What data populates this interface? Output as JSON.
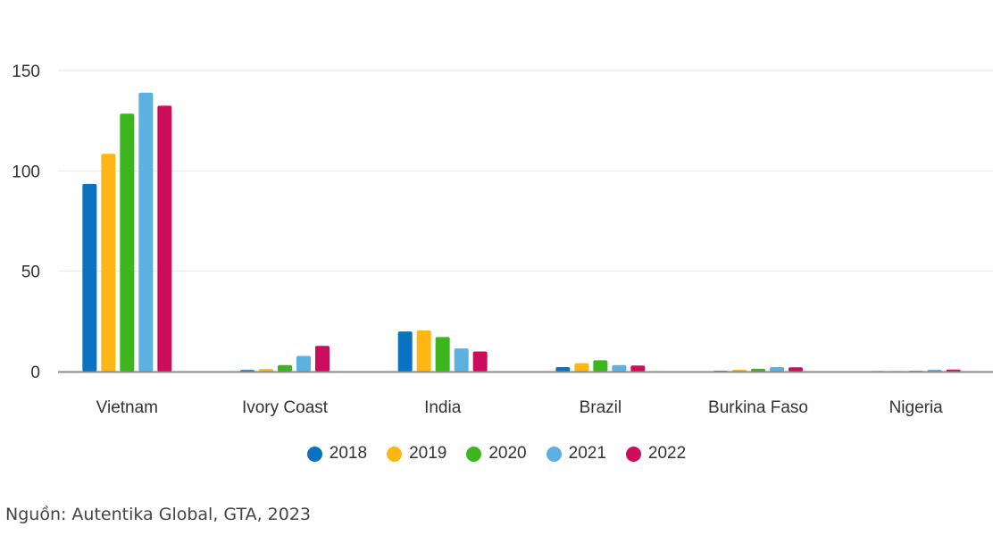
{
  "chart_data": {
    "type": "bar",
    "categories": [
      "Vietnam",
      "Ivory Coast",
      "India",
      "Brazil",
      "Burkina Faso",
      "Nigeria"
    ],
    "series": [
      {
        "name": "2018",
        "color": "#0a72c0",
        "values": [
          93.5,
          0.8,
          20,
          2.2,
          0.4,
          0.3
        ]
      },
      {
        "name": "2019",
        "color": "#fdb614",
        "values": [
          108.5,
          1.3,
          20.5,
          4.2,
          0.9,
          0.3
        ]
      },
      {
        "name": "2020",
        "color": "#3cb51e",
        "values": [
          128.5,
          3.2,
          17.2,
          5.6,
          1.4,
          0.4
        ]
      },
      {
        "name": "2021",
        "color": "#5db1e0",
        "values": [
          139,
          7.8,
          11.5,
          3.2,
          2.2,
          0.9
        ]
      },
      {
        "name": "2022",
        "color": "#cc0d5c",
        "values": [
          132.5,
          12.8,
          10,
          3.0,
          2.1,
          1.0
        ]
      }
    ],
    "yticks": [
      0,
      50,
      100,
      150
    ],
    "ylim": [
      0,
      160
    ],
    "grid": true,
    "legend_position": "bottom-center"
  },
  "source_text": "Nguồn: Autentika Global, GTA, 2023"
}
